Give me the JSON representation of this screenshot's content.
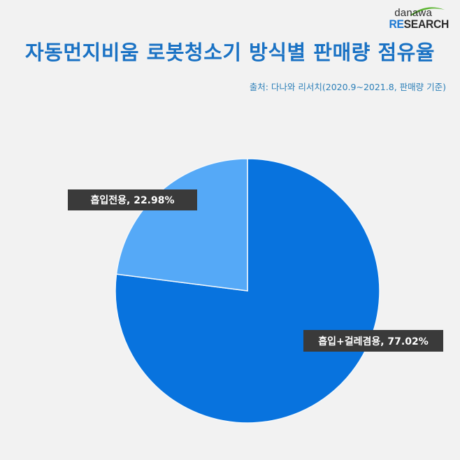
{
  "logo": {
    "line1": "danawa",
    "line2_accent": "RE",
    "line2_rest": "SEARCH"
  },
  "title": "자동먼지비움 로봇청소기 방식별 판매량 점유율",
  "source": "출처: 다나와 리서치(2020.9~2021.8, 판매량 기준)",
  "labels": {
    "suction_only": "흡입전용, 22.98%",
    "suction_mop": "흡입+걸레겸용, 77.02%"
  },
  "colors": {
    "title": "#1a72c4",
    "slice_suction_only": "#55a9f7",
    "slice_suction_mop": "#0873de",
    "label_bg": "#3a3a3a",
    "background": "#f2f2f2"
  },
  "chart_data": {
    "type": "pie",
    "title": "자동먼지비움 로봇청소기 방식별 판매량 점유율",
    "subtitle": "출처: 다나와 리서치(2020.9~2021.8, 판매량 기준)",
    "categories": [
      "흡입전용",
      "흡입+걸레겸용"
    ],
    "values": [
      22.98,
      77.02
    ],
    "unit": "%",
    "start_angle": "12 o'clock",
    "legend": "none (data labels on slices)"
  }
}
